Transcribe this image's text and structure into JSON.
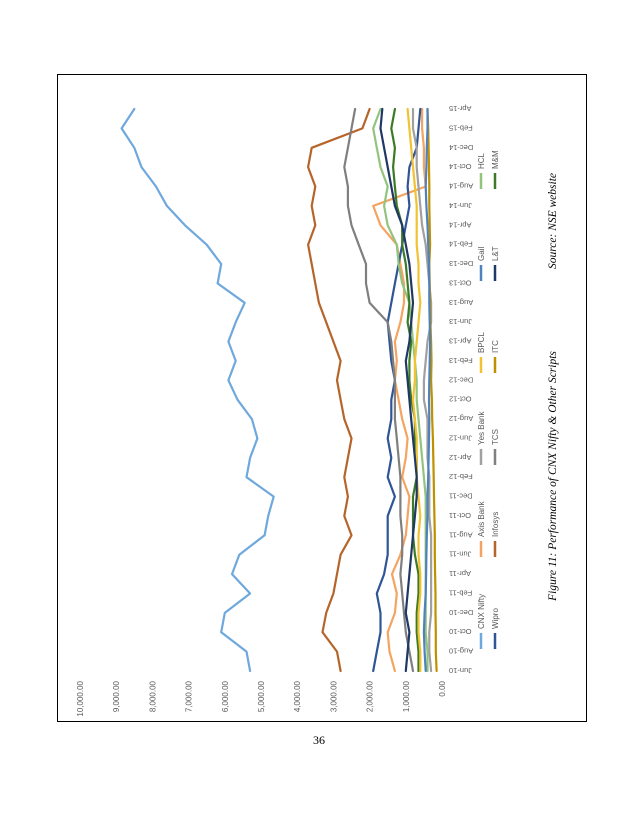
{
  "figure": {
    "caption": "Figure 11: Performance of CNX Nifty & Other Scripts",
    "source": "Source: NSE website"
  },
  "page": {
    "number": "36"
  },
  "chart_data": {
    "type": "line",
    "orientation": "rotated-90",
    "y_ticks": [
      "0.00",
      "1,000.00",
      "2,000.00",
      "3,000.00",
      "4,000.00",
      "5,000.00",
      "6,000.00",
      "7,000.00",
      "8,000.00",
      "9,000.00",
      "10,000.00"
    ],
    "ylim": [
      0,
      10000
    ],
    "x_labels": [
      "Jun-10",
      "Aug-10",
      "Oct-10",
      "Dec-10",
      "Feb-11",
      "Apr-11",
      "Jun-11",
      "Aug-11",
      "Oct-11",
      "Dec-11",
      "Feb-12",
      "Apr-12",
      "Jun-12",
      "Aug-12",
      "Oct-12",
      "Dec-12",
      "Feb-13",
      "Apr-13",
      "Jun-13",
      "Aug-13",
      "Oct-13",
      "Dec-13",
      "Feb-14",
      "Apr-14",
      "Jun-14",
      "Aug-14",
      "Oct-14",
      "Dec-14",
      "Feb-15",
      "Apr-15"
    ],
    "grid": false,
    "legend_position": "bottom",
    "series": [
      {
        "name": "CNX Nifty",
        "color": "#6FA8DC",
        "values": [
          5300,
          5400,
          6100,
          6000,
          5300,
          5800,
          5600,
          4900,
          4800,
          4650,
          5400,
          5300,
          5100,
          5250,
          5650,
          5900,
          5700,
          5900,
          5700,
          5450,
          6200,
          6100,
          6500,
          7100,
          7600,
          7900,
          8300,
          8500,
          8850,
          8500
        ]
      },
      {
        "name": "Axis Bank",
        "color": "#F4A460",
        "values": [
          1300,
          1450,
          1500,
          1300,
          1250,
          1380,
          1150,
          1000,
          950,
          900,
          1100,
          1000,
          950,
          1100,
          1200,
          1300,
          1250,
          1300,
          1150,
          1050,
          1050,
          1150,
          1250,
          1700,
          1900,
          450,
          500,
          500,
          550,
          550
        ]
      },
      {
        "name": "Infosys",
        "color": "#B5652A",
        "values": [
          2800,
          2900,
          3300,
          3200,
          3000,
          2900,
          2800,
          2500,
          2700,
          2600,
          2700,
          2600,
          2500,
          2700,
          2800,
          2900,
          2800,
          3000,
          3200,
          3400,
          3500,
          3600,
          3700,
          3500,
          3600,
          3500,
          3700,
          3600,
          2200,
          2000
        ]
      },
      {
        "name": "Wipro",
        "color": "#2F5597",
        "values": [
          1900,
          1800,
          1700,
          1700,
          1800,
          1600,
          1500,
          1500,
          1500,
          1300,
          1500,
          1400,
          1500,
          1400,
          1400,
          1300,
          1400,
          1450,
          1500,
          1400,
          1300,
          1200,
          1100,
          1000,
          900,
          950,
          900,
          700,
          650,
          600
        ]
      },
      {
        "name": "Yes Bank",
        "color": "#A0A0A0",
        "values": [
          300,
          350,
          350,
          300,
          300,
          300,
          300,
          300,
          350,
          350,
          350,
          400,
          400,
          400,
          500,
          500,
          450,
          400,
          300,
          300,
          350,
          400,
          450,
          550,
          600,
          650,
          700,
          700,
          800,
          800
        ]
      },
      {
        "name": "TCS",
        "color": "#7F7F7F",
        "values": [
          800,
          900,
          1000,
          1050,
          1100,
          1150,
          1100,
          1100,
          1150,
          1150,
          1150,
          1200,
          1250,
          1300,
          1300,
          1300,
          1350,
          1400,
          1500,
          2000,
          2100,
          2100,
          2300,
          2500,
          2600,
          2600,
          2700,
          2600,
          2500,
          2400
        ]
      },
      {
        "name": "HCL",
        "color": "#93C47D",
        "values": [
          400,
          400,
          450,
          450,
          450,
          450,
          450,
          450,
          450,
          450,
          500,
          550,
          600,
          650,
          700,
          700,
          750,
          800,
          850,
          900,
          1100,
          1200,
          1250,
          1500,
          1600,
          1500,
          1700,
          1800,
          1900,
          1700
        ]
      },
      {
        "name": "M&M",
        "color": "#3D7A27",
        "values": [
          650,
          650,
          700,
          700,
          650,
          650,
          750,
          800,
          800,
          800,
          700,
          700,
          750,
          750,
          850,
          900,
          900,
          850,
          950,
          900,
          950,
          1000,
          1100,
          1100,
          1250,
          1300,
          1350,
          1300,
          1400,
          1300
        ]
      },
      {
        "name": "BPCL",
        "color": "#F1C232",
        "values": [
          600,
          600,
          650,
          650,
          600,
          600,
          650,
          650,
          600,
          650,
          700,
          700,
          700,
          750,
          800,
          750,
          750,
          700,
          650,
          600,
          650,
          650,
          700,
          700,
          700,
          750,
          800,
          850,
          900,
          950
        ]
      },
      {
        "name": "ITC",
        "color": "#BF9000",
        "values": [
          150,
          170,
          170,
          180,
          180,
          190,
          200,
          200,
          210,
          220,
          230,
          240,
          250,
          270,
          280,
          300,
          290,
          300,
          320,
          330,
          340,
          350,
          330,
          340,
          350,
          350,
          360,
          370,
          380,
          400
        ]
      },
      {
        "name": "Gail",
        "color": "#4F81BD",
        "values": [
          450,
          480,
          500,
          480,
          450,
          440,
          430,
          420,
          400,
          400,
          380,
          370,
          360,
          350,
          360,
          350,
          340,
          330,
          340,
          350,
          350,
          360,
          380,
          400,
          430,
          450,
          430,
          420,
          400,
          400
        ]
      },
      {
        "name": "L&T",
        "color": "#1F3864",
        "values": [
          1000,
          950,
          900,
          1000,
          950,
          900,
          850,
          800,
          750,
          700,
          700,
          750,
          800,
          850,
          900,
          950,
          1000,
          900,
          850,
          800,
          850,
          900,
          1000,
          1100,
          1300,
          1400,
          1500,
          1600,
          1700,
          1650
        ]
      }
    ]
  }
}
